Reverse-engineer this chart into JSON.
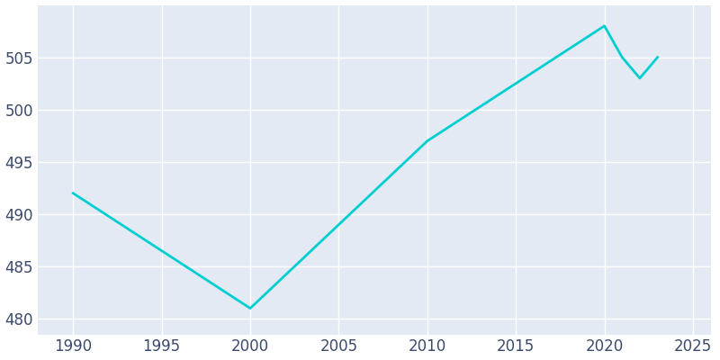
{
  "years": [
    1990,
    2000,
    2010,
    2020,
    2021,
    2022,
    2023
  ],
  "population": [
    492,
    481,
    497,
    508,
    505,
    503,
    505
  ],
  "line_color": "#00CED1",
  "axes_bg_color": "#E3EAF3",
  "fig_bg_color": "#FFFFFF",
  "grid_color": "#FFFFFF",
  "tick_color": "#3B4A6B",
  "xlim": [
    1988,
    2026
  ],
  "ylim": [
    478.5,
    510
  ],
  "yticks": [
    480,
    485,
    490,
    495,
    500,
    505
  ],
  "xticks": [
    1990,
    1995,
    2000,
    2005,
    2010,
    2015,
    2020,
    2025
  ],
  "linewidth": 2.0,
  "tick_fontsize": 12
}
